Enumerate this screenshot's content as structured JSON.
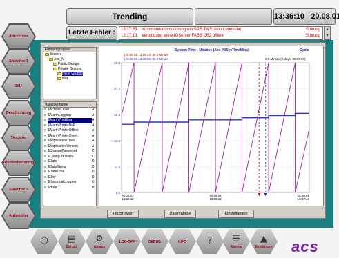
{
  "header": {
    "title": "Trending",
    "time": "13:36:10",
    "date": "20.08.01",
    "errors_label": "Letzte Fehler :",
    "errors": [
      {
        "time": "13:17:55",
        "message": "Kommunikationsstörung mit SPS JWS, kein Lebensbit",
        "status": "Störung"
      },
      {
        "time": "13:17:13",
        "message": "Verbindung View-IOServer FABB DB2 offline",
        "status": "Störung"
      }
    ],
    "scroll_up": "▲",
    "scroll_down": "▼"
  },
  "left_nav": [
    {
      "label": "Abschlüss"
    },
    {
      "label": "Speicher 1"
    },
    {
      "label": "DIU"
    },
    {
      "label": "Beschichtung"
    },
    {
      "label": "Trockner"
    },
    {
      "label": "Rückbehandlung"
    },
    {
      "label": "Speicher 2"
    },
    {
      "label": "Aufwickler"
    }
  ],
  "tree": {
    "header": "Elementgruppen",
    "nodes": [
      {
        "label": "Servers",
        "indent": 0
      },
      {
        "label": "Acs_N",
        "indent": 1
      },
      {
        "label": "Public Groups",
        "indent": 2
      },
      {
        "label": "Private Groups",
        "indent": 2
      },
      {
        "label": "Neue Gruppe",
        "indent": 3,
        "selected": true
      },
      {
        "label": "test",
        "indent": 3
      }
    ]
  },
  "variables": {
    "header_name": "Variablenname",
    "header_type": "T",
    "rows": [
      {
        "name": "$AccessLevel",
        "type": "A"
      },
      {
        "name": "$AlarmLogging",
        "type": "A"
      },
      {
        "name": "$AlarmPrintEna",
        "type": "A",
        "selected": true
      },
      {
        "name": "$AlarmPrinterNoP..",
        "type": "A"
      },
      {
        "name": "$AlarmPrinterOffline",
        "type": "A"
      },
      {
        "name": "$AlarmPrinterOverf..",
        "type": "A"
      },
      {
        "name": "$ApplicationChan..",
        "type": "A"
      },
      {
        "name": "$ApplicationVersion",
        "type": "A"
      },
      {
        "name": "$ChangePassword",
        "type": "C"
      },
      {
        "name": "$ConfigureUsers",
        "type": "C"
      },
      {
        "name": "$Date",
        "type": "D"
      },
      {
        "name": "$DateString",
        "type": "D"
      },
      {
        "name": "$DateTime",
        "type": "D"
      },
      {
        "name": "$Day",
        "type": "D"
      },
      {
        "name": "$HistoricalLogging",
        "type": "H"
      },
      {
        "name": "$Hour",
        "type": "H"
      }
    ]
  },
  "chart_data": {
    "type": "line",
    "title": "System Time - Minutes (Acs_N\\SysTimeMins)",
    "right_label": "Cycle",
    "legend": [
      {
        "text": "(20.08.01 13:16:14)  36.0 Minute",
        "color": "#e00000"
      },
      {
        "text": "(20.08.01 13:30:33)  36.0 Minute",
        "color": "#2a2ad0"
      }
    ],
    "info": "0.0 Minute (0 days, 00:00:20)",
    "ylim": [
      0,
      59
    ],
    "yticks": [
      "59.0",
      "47.2",
      "35.4",
      "23.6",
      "11.8",
      "0.0"
    ],
    "xticks": [
      {
        "d": "20.08.01",
        "t": "13:32:42"
      },
      {
        "d": "20.08.01",
        "t": "13:35:12"
      },
      {
        "d": "20.08.01",
        "t": "13:37:42"
      }
    ],
    "series": [
      {
        "color": "#a020a0",
        "x": [
          0,
          4,
          4,
          13,
          13,
          21.5,
          21.5,
          30,
          30,
          38.5,
          38.5,
          47,
          47,
          55.5,
          55.5,
          60
        ],
        "y": [
          35,
          59,
          0,
          59,
          0,
          59,
          0,
          59,
          0,
          59,
          0,
          59,
          0,
          59,
          0,
          29
        ]
      },
      {
        "color": "#3030d0",
        "x": [
          0,
          4,
          4,
          21.5,
          21.5,
          38.5,
          38.5,
          47,
          47,
          55.5,
          55.5,
          60
        ],
        "y": [
          31,
          31,
          32,
          32,
          33,
          33,
          34,
          34,
          35,
          35,
          36,
          36
        ]
      }
    ],
    "cursors": [
      {
        "x": 44,
        "color": "#e00000"
      },
      {
        "x": 46,
        "color": "#2a2ad0"
      }
    ],
    "xlim": [
      0,
      60
    ]
  },
  "chart_buttons": [
    "Tag Browser",
    "Datentabelle",
    "Einstellungen"
  ],
  "bottom_bar": [
    {
      "label": "",
      "icon": "⬡"
    },
    {
      "label": "Zurück",
      "icon": "▤"
    },
    {
      "label": "Anlage",
      "icon": "⚙"
    },
    {
      "label": "LOG-OFF",
      "icon": ""
    },
    {
      "label": "DEBUG",
      "icon": ""
    },
    {
      "label": "INFO",
      "icon": ""
    },
    {
      "label": "",
      "icon": "?"
    },
    {
      "label": "Alarme",
      "icon": "☰"
    },
    {
      "label": "Bestätigen",
      "icon": "▲"
    }
  ],
  "logo": "acs"
}
